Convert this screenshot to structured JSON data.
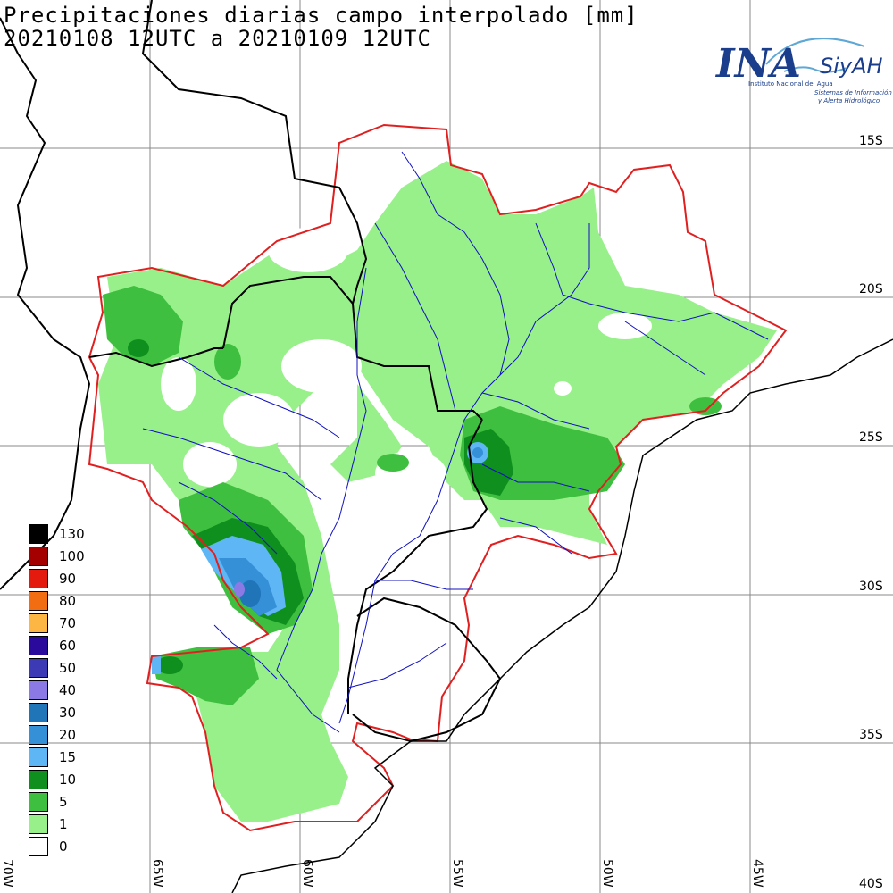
{
  "title": {
    "line1": "Precipitaciones diarias campo interpolado [mm]",
    "line2": "20210108 12UTC a 20210109 12UTC"
  },
  "logo": {
    "name": "INA",
    "system": "SiyAH",
    "sub1": "Instituto Nacional del Agua",
    "sub2": "Sistemas de Información",
    "sub3": "y Alerta Hidrológico"
  },
  "lat_labels": [
    "15S",
    "20S",
    "25S",
    "30S",
    "35S",
    "40S"
  ],
  "lon_labels": [
    "70W",
    "65W",
    "60W",
    "55W",
    "50W",
    "45W"
  ],
  "legend": [
    {
      "label": "130",
      "color": "#000000"
    },
    {
      "label": "100",
      "color": "#a50000"
    },
    {
      "label": "90",
      "color": "#e41a0e"
    },
    {
      "label": "80",
      "color": "#f26d11"
    },
    {
      "label": "70",
      "color": "#fdb644"
    },
    {
      "label": "60",
      "color": "#2a0a9c"
    },
    {
      "label": "50",
      "color": "#3c3ab5"
    },
    {
      "label": "40",
      "color": "#8b7ae6"
    },
    {
      "label": "30",
      "color": "#2074b8"
    },
    {
      "label": "20",
      "color": "#3590d8"
    },
    {
      "label": "15",
      "color": "#5fb6f5"
    },
    {
      "label": "10",
      "color": "#0f8f1e"
    },
    {
      "label": "5",
      "color": "#3fbf3f"
    },
    {
      "label": "1",
      "color": "#98f08a"
    },
    {
      "label": "0",
      "color": "#ffffff"
    }
  ],
  "colors": {
    "basin_outline": "#e02020",
    "borders": "#000000",
    "rivers": "#1010c0",
    "grid": "#808080"
  }
}
